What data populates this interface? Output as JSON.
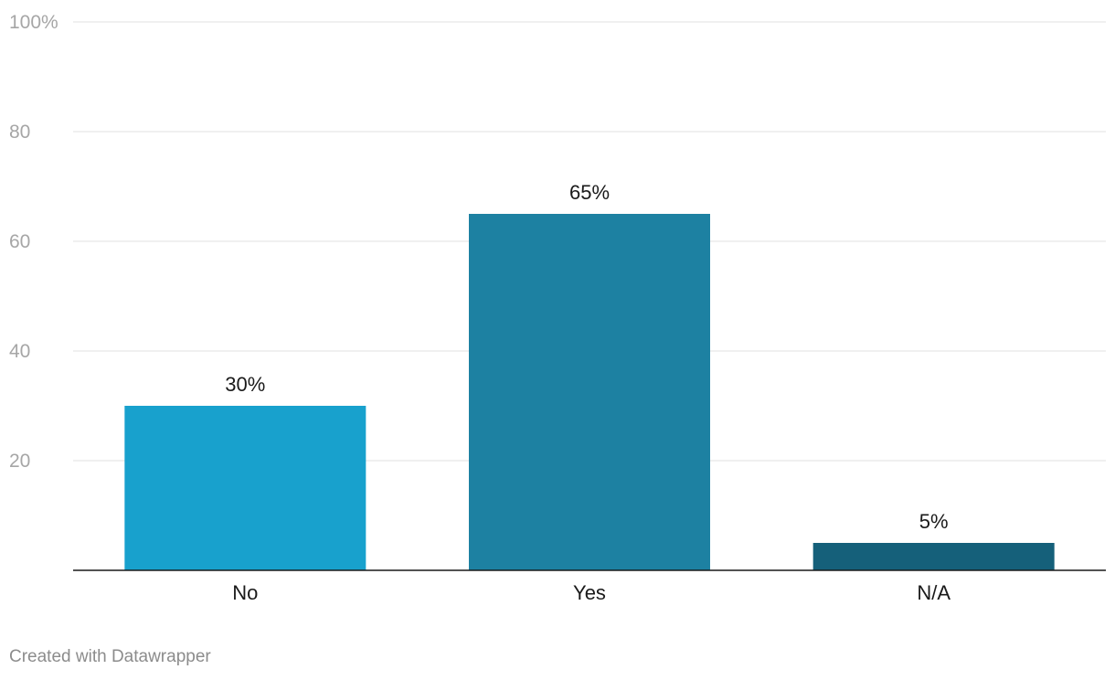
{
  "chart_data": {
    "type": "bar",
    "categories": [
      "No",
      "Yes",
      "N/A"
    ],
    "values": [
      30,
      65,
      5
    ],
    "value_labels": [
      "30%",
      "65%",
      "5%"
    ],
    "colors": [
      "#18a1cd",
      "#1d81a2",
      "#15607a"
    ],
    "y_ticks": [
      20,
      40,
      60,
      80,
      100
    ],
    "y_tick_labels": [
      "20",
      "40",
      "60",
      "80",
      "100%"
    ],
    "ylim": [
      0,
      100
    ],
    "grid": true,
    "title": "",
    "xlabel": "",
    "ylabel": ""
  },
  "footer": {
    "credit": "Created with Datawrapper"
  },
  "colors": {
    "grid": "#e2e2e2",
    "axis": "#1a1a1a",
    "tick_text": "#a6a6a6",
    "label_text": "#1a1a1a",
    "footer_text": "#8c8c8c"
  }
}
